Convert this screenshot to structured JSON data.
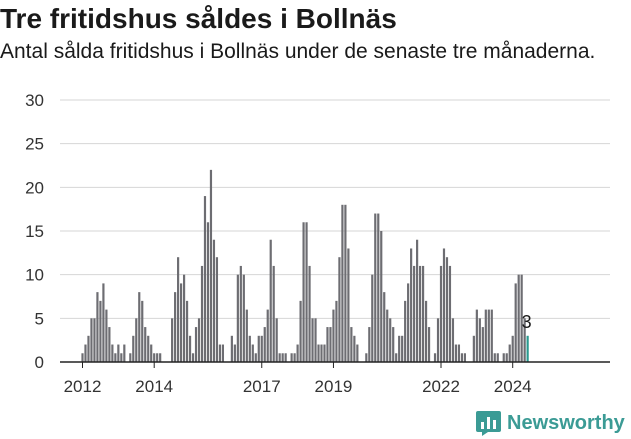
{
  "header": {
    "title": "Tre fritidshus såldes i Bollnäs",
    "subtitle": "Antal sålda fritidshus i Bollnäs under de senaste tre månaderna."
  },
  "brand": {
    "name": "Newsworthy",
    "icon": "newsworthy-logo-icon",
    "color": "#3b9b95"
  },
  "colors": {
    "bar": "#6d6d72",
    "highlight": "#2a9a8f",
    "grid": "#d6d6d6",
    "axis": "#222222"
  },
  "chart_data": {
    "type": "bar",
    "title": "Tre fritidshus såldes i Bollnäs",
    "subtitle": "Antal sålda fritidshus i Bollnäs under de senaste tre månaderna.",
    "ylim": [
      0,
      30
    ],
    "yticks": [
      0,
      5,
      10,
      15,
      20,
      25,
      30
    ],
    "xticks": [
      {
        "label": "2012",
        "x": "2012-01"
      },
      {
        "label": "2014",
        "x": "2014-01"
      },
      {
        "label": "2017",
        "x": "2017-01"
      },
      {
        "label": "2019",
        "x": "2019-01"
      },
      {
        "label": "2022",
        "x": "2022-01"
      },
      {
        "label": "2024",
        "x": "2024-01"
      }
    ],
    "grid": true,
    "x_start": "2012-01",
    "values": [
      1,
      2,
      3,
      5,
      5,
      8,
      7,
      9,
      6,
      4,
      2,
      1,
      2,
      1,
      2,
      0,
      1,
      3,
      5,
      8,
      7,
      4,
      3,
      2,
      1,
      1,
      1,
      0,
      0,
      0,
      5,
      8,
      12,
      9,
      10,
      7,
      3,
      1,
      4,
      5,
      11,
      19,
      16,
      22,
      14,
      12,
      2,
      2,
      0,
      0,
      3,
      2,
      10,
      11,
      10,
      6,
      3,
      2,
      1,
      3,
      3,
      4,
      6,
      14,
      11,
      5,
      1,
      1,
      1,
      0,
      1,
      1,
      2,
      7,
      16,
      16,
      11,
      5,
      5,
      2,
      2,
      2,
      4,
      4,
      6,
      7,
      12,
      18,
      18,
      13,
      4,
      3,
      2,
      0,
      0,
      1,
      4,
      10,
      17,
      17,
      15,
      8,
      6,
      5,
      4,
      1,
      3,
      3,
      7,
      9,
      13,
      11,
      14,
      11,
      11,
      7,
      4,
      0,
      1,
      5,
      11,
      13,
      12,
      11,
      5,
      2,
      2,
      1,
      1,
      0,
      0,
      3,
      6,
      5,
      4,
      6,
      6,
      6,
      1,
      1,
      0,
      1,
      1,
      2,
      3,
      9,
      10,
      10,
      5,
      3
    ],
    "last_value_label": "3"
  }
}
